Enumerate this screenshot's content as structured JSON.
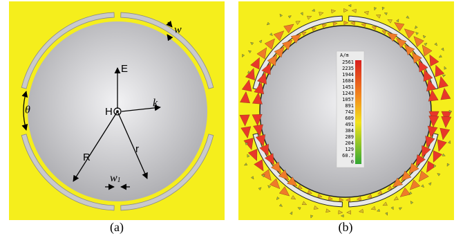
{
  "panel_a": {
    "labels": {
      "E": "E",
      "H": "H",
      "k": "k",
      "R": "R",
      "r": "r",
      "theta": "θ",
      "w": "w",
      "w1_base": "w",
      "w1_sub": "1"
    },
    "caption": "(a)"
  },
  "panel_b": {
    "legend": {
      "unit": "A/m",
      "ticks": [
        "2561",
        "2235",
        "1944",
        "1684",
        "1451",
        "1243",
        "1057",
        "891",
        "742",
        "609",
        "491",
        "384",
        "289",
        "204",
        "129",
        "60.7",
        "0"
      ]
    },
    "caption": "(b)"
  }
}
